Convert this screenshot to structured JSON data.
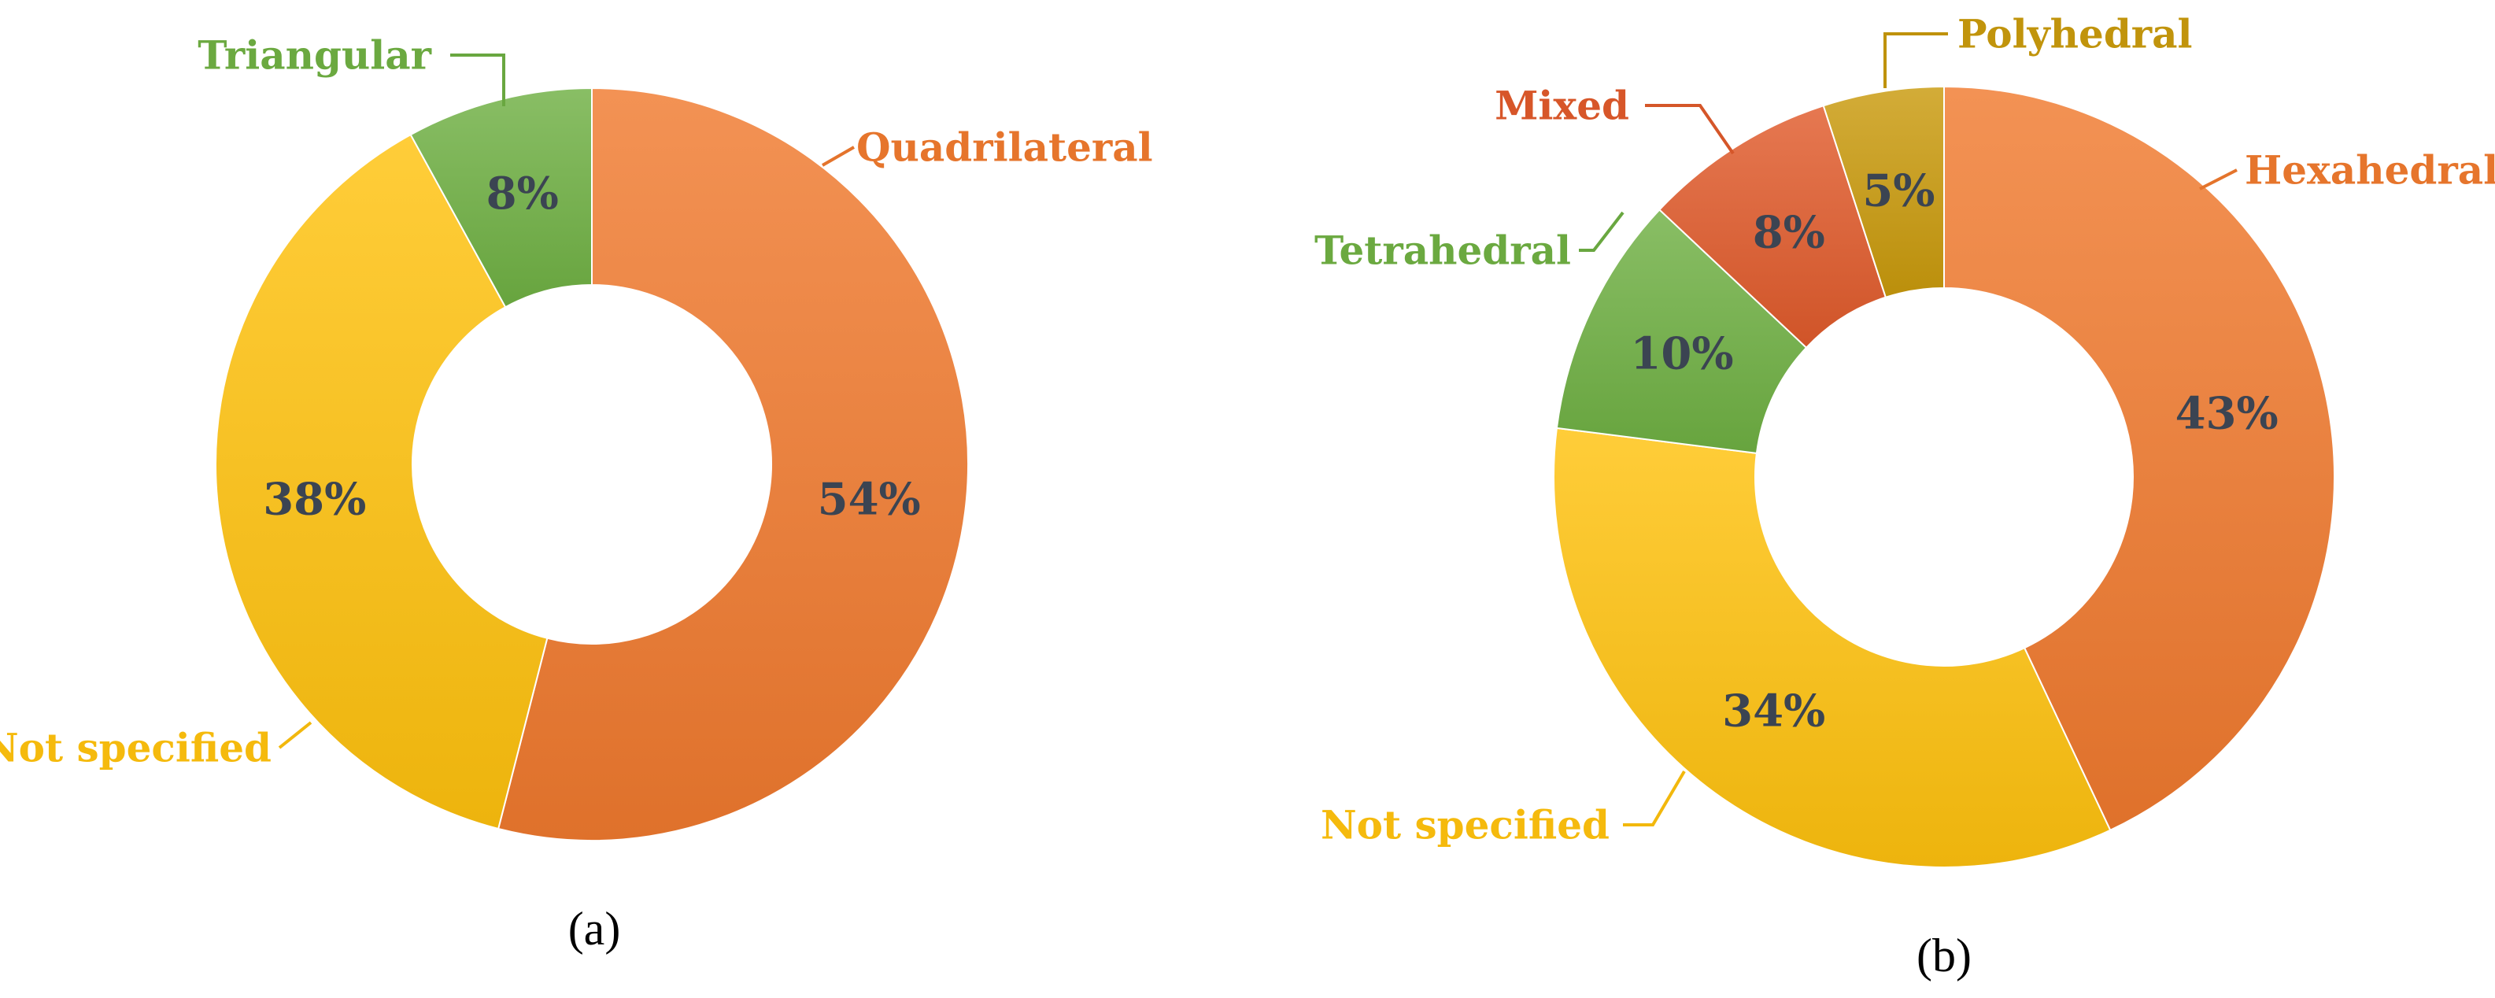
{
  "chart_data": [
    {
      "type": "pie",
      "donut": true,
      "caption": "(a)",
      "categories": [
        "Quadrilateral",
        "Not specified",
        "Triangular"
      ],
      "values": [
        54,
        38,
        8
      ],
      "value_labels": [
        "54%",
        "38%",
        "8%"
      ],
      "colors": [
        "#f07a2e",
        "#ffc20e",
        "#6fb043"
      ],
      "legend": "none"
    },
    {
      "type": "pie",
      "donut": true,
      "caption": "(b)",
      "categories": [
        "Hexahedral",
        "Not specified",
        "Tetrahedral",
        "Mixed",
        "Polyhedral"
      ],
      "values": [
        43,
        34,
        10,
        8,
        5
      ],
      "value_labels": [
        "43%",
        "34%",
        "10%",
        "8%",
        "5%"
      ],
      "colors": [
        "#f07a2e",
        "#ffc20e",
        "#6fb043",
        "#e05a2b",
        "#c99a0c"
      ],
      "legend": "none"
    }
  ]
}
